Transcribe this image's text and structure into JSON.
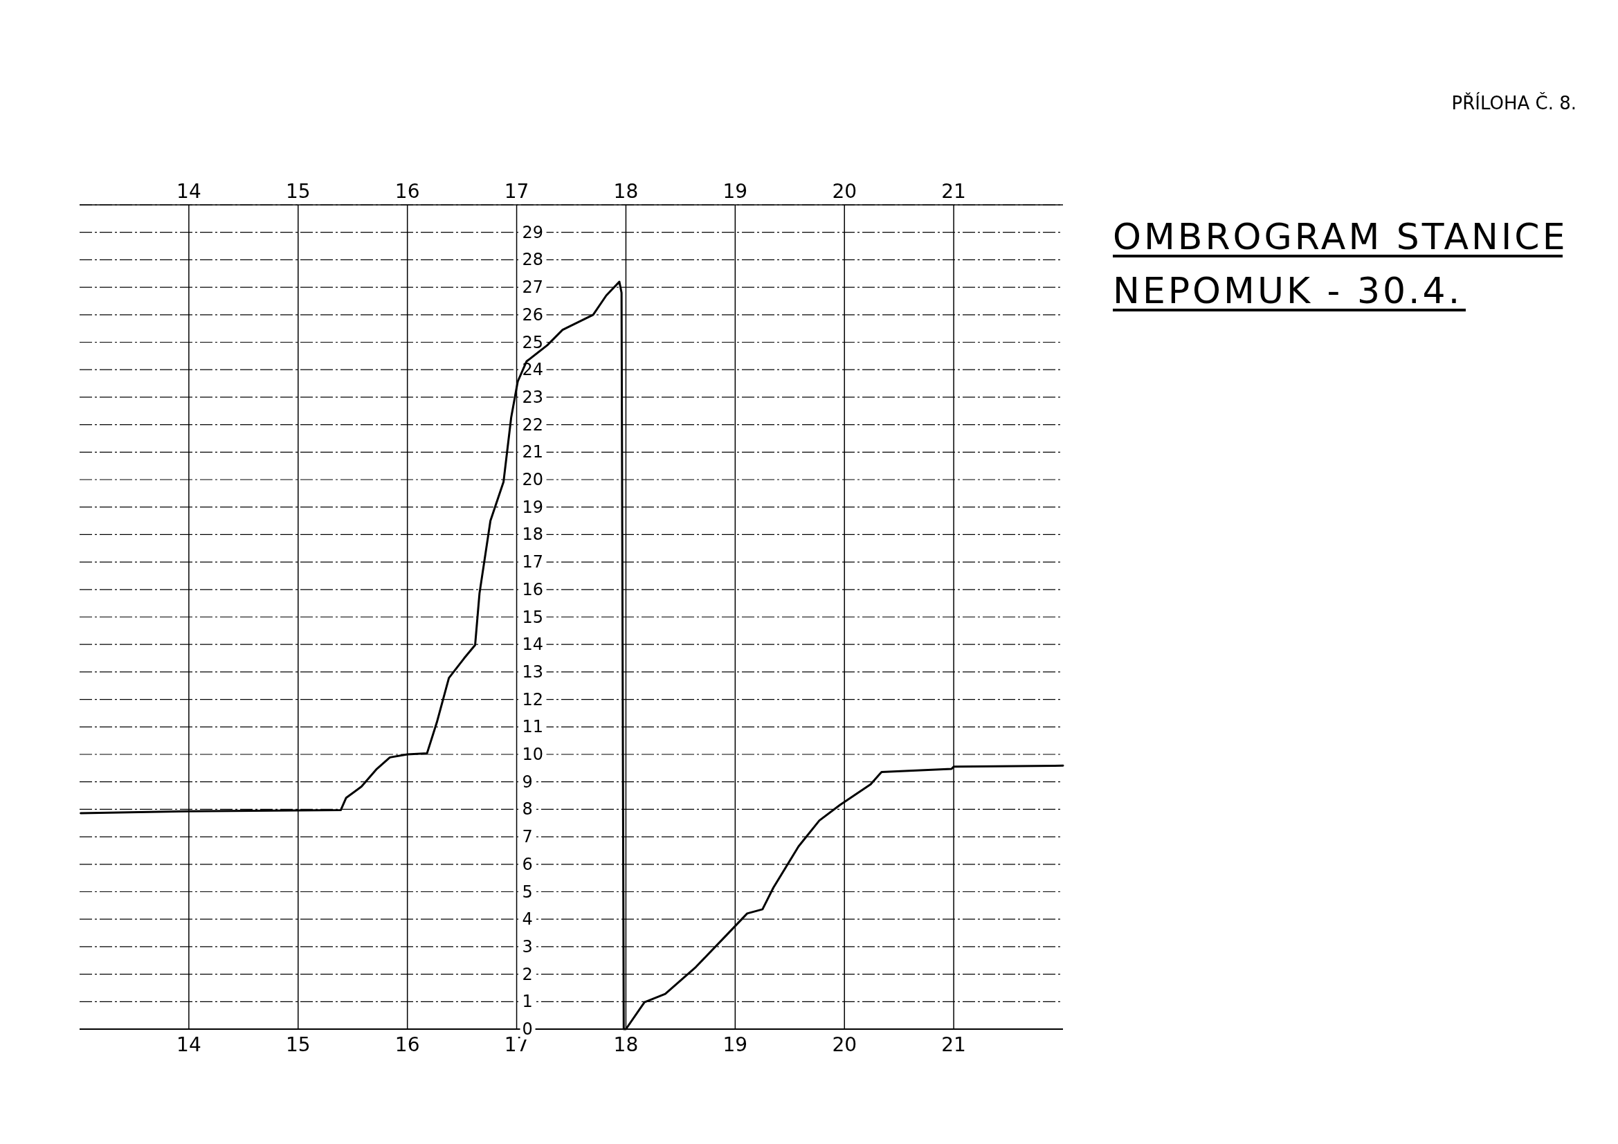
{
  "chart_data": {
    "type": "line",
    "title": "OMBROGRAM STANICE",
    "subtitle": "NEPOMUK - 30.4.",
    "annotations": [
      "PŘÍLOHA Č. 8."
    ],
    "x": [
      13.01,
      14.0,
      15.39,
      15.44,
      15.58,
      15.72,
      15.84,
      16.0,
      16.18,
      16.27,
      16.38,
      16.52,
      16.62,
      16.66,
      16.76,
      16.88,
      16.95,
      17.01,
      17.09,
      17.28,
      17.42,
      17.7,
      17.82,
      17.94,
      17.96,
      17.98,
      18.0,
      18.17,
      18.36,
      18.64,
      18.93,
      19.11,
      19.25,
      19.35,
      19.58,
      19.77,
      19.96,
      20.24,
      20.34,
      20.98,
      21.0,
      22.0
    ],
    "series": [
      {
        "color": "#000000",
        "values": [
          7.86,
          7.93,
          7.97,
          8.42,
          8.83,
          9.47,
          9.89,
          10.0,
          10.04,
          11.17,
          12.78,
          13.5,
          13.98,
          15.86,
          18.5,
          19.92,
          22.26,
          23.57,
          24.3,
          24.89,
          25.45,
          26.0,
          26.7,
          27.2,
          26.8,
          0,
          0,
          0.98,
          1.28,
          2.26,
          3.46,
          4.21,
          4.36,
          5.15,
          6.65,
          7.59,
          8.16,
          8.91,
          9.36,
          9.47,
          9.55,
          9.59
        ]
      }
    ],
    "xlim": [
      13,
      22
    ],
    "xticks": [
      14,
      15,
      16,
      17,
      18,
      19,
      20,
      21
    ],
    "x2lim": [
      13,
      22
    ],
    "x2ticks": [
      14,
      15,
      16,
      17,
      18,
      19,
      20,
      21
    ],
    "ylim": [
      0,
      30
    ],
    "yticks": [
      0,
      1,
      2,
      3,
      4,
      5,
      6,
      7,
      8,
      9,
      10,
      11,
      12,
      13,
      14,
      15,
      16,
      17,
      18,
      19,
      20,
      21,
      22,
      23,
      24,
      25,
      26,
      27,
      28,
      29,
      {
        "value": 30,
        "label": null
      }
    ],
    "grid": true,
    "marker": "none",
    "line_style": "solid"
  }
}
